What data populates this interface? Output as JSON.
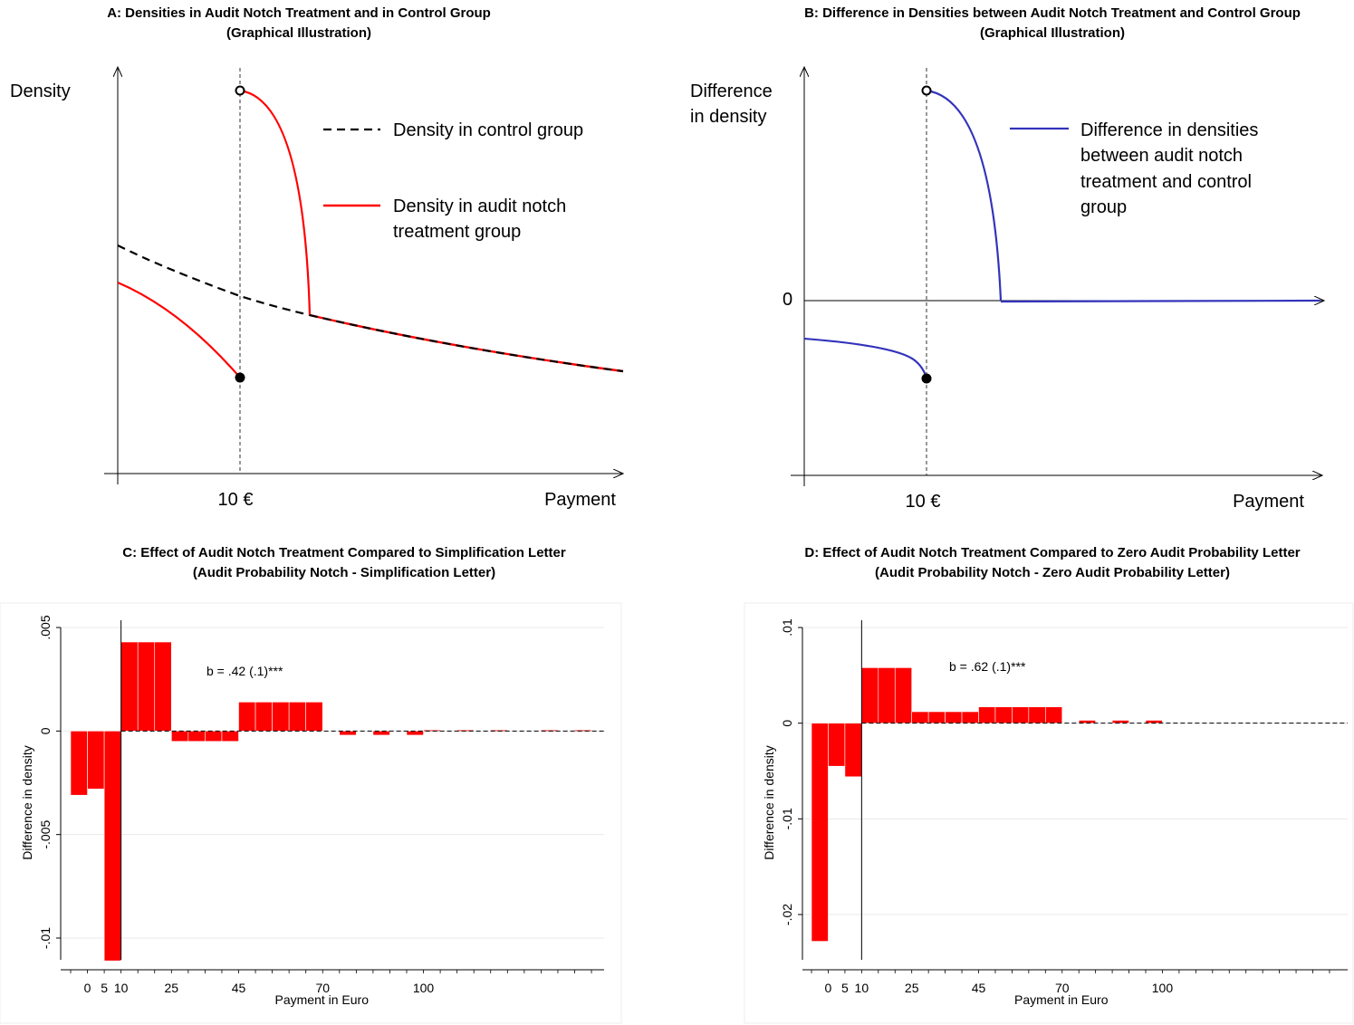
{
  "panels": {
    "a": {
      "title": "A: Densities in Audit Notch Treatment and in Control Group",
      "subtitle": "(Graphical Illustration)",
      "ylabel": "Density",
      "xlabel": "Payment",
      "notch_label": "10 €",
      "legend": {
        "control": "Density in control group",
        "treatment_line1": "Density in audit notch",
        "treatment_line2": "treatment group"
      }
    },
    "b": {
      "title": "B: Difference in Densities between Audit Notch Treatment and Control Group",
      "subtitle": "(Graphical Illustration)",
      "ylabel_line1": "Difference",
      "ylabel_line2": "in density",
      "zero_label": "0",
      "xlabel": "Payment",
      "notch_label": "10 €",
      "legend": {
        "line1": "Difference in densities",
        "line2": "between audit notch",
        "line3": "treatment and control",
        "line4": "group"
      }
    },
    "c": {
      "title": "C: Effect of Audit Notch Treatment Compared to Simplification Letter",
      "subtitle": "(Audit Probability Notch - Simplification Letter)"
    },
    "d": {
      "title": "D: Effect of Audit Notch Treatment Compared to Zero Audit Probability Letter",
      "subtitle": "(Audit Probability Notch - Zero Audit Probability Letter)"
    }
  },
  "colors": {
    "treatment": "#ff0000",
    "difference": "#3333bb",
    "control": "#000000",
    "bar": "#ff0000",
    "grid": "#e8e8e8"
  },
  "chart_data": [
    {
      "id": "c",
      "type": "bar",
      "xlabel": "Payment in Euro",
      "ylabel": "Difference in density",
      "xticks": [
        0,
        5,
        10,
        25,
        45,
        70,
        100
      ],
      "yticks": [
        0.005,
        0,
        -0.005,
        -0.01
      ],
      "ytick_labels": [
        ".005",
        "0",
        "-.005",
        "-.01"
      ],
      "ylim": [
        -0.0111,
        0.0051
      ],
      "xlim": [
        -5,
        150
      ],
      "notch_x": 10,
      "annotation": "b = .42 (.1)***",
      "bars": [
        {
          "x0": -5,
          "x1": 0,
          "value": -0.0031
        },
        {
          "x0": 0,
          "x1": 5,
          "value": -0.0028
        },
        {
          "x0": 5,
          "x1": 10,
          "value": -0.0111
        },
        {
          "x0": 10,
          "x1": 15,
          "value": 0.0043
        },
        {
          "x0": 15,
          "x1": 20,
          "value": 0.0043
        },
        {
          "x0": 20,
          "x1": 25,
          "value": 0.0043
        },
        {
          "x0": 25,
          "x1": 30,
          "value": -0.0005
        },
        {
          "x0": 30,
          "x1": 35,
          "value": -0.0005
        },
        {
          "x0": 35,
          "x1": 40,
          "value": -0.0005
        },
        {
          "x0": 40,
          "x1": 45,
          "value": -0.0005
        },
        {
          "x0": 45,
          "x1": 50,
          "value": 0.0014
        },
        {
          "x0": 50,
          "x1": 55,
          "value": 0.0014
        },
        {
          "x0": 55,
          "x1": 60,
          "value": 0.0014
        },
        {
          "x0": 60,
          "x1": 65,
          "value": 0.0014
        },
        {
          "x0": 65,
          "x1": 70,
          "value": 0.0014
        },
        {
          "x0": 70,
          "x1": 75,
          "value": 0
        },
        {
          "x0": 75,
          "x1": 80,
          "value": -0.0002
        },
        {
          "x0": 80,
          "x1": 85,
          "value": 0
        },
        {
          "x0": 85,
          "x1": 90,
          "value": -0.0002
        },
        {
          "x0": 90,
          "x1": 95,
          "value": 0
        },
        {
          "x0": 95,
          "x1": 100,
          "value": -0.0002
        },
        {
          "x0": 100,
          "x1": 105,
          "value": 5e-05
        },
        {
          "x0": 105,
          "x1": 110,
          "value": 0
        },
        {
          "x0": 110,
          "x1": 115,
          "value": 5e-05
        },
        {
          "x0": 115,
          "x1": 120,
          "value": 0
        },
        {
          "x0": 120,
          "x1": 125,
          "value": 5e-05
        },
        {
          "x0": 125,
          "x1": 130,
          "value": 0
        },
        {
          "x0": 130,
          "x1": 135,
          "value": 0
        },
        {
          "x0": 135,
          "x1": 140,
          "value": 5e-05
        },
        {
          "x0": 140,
          "x1": 145,
          "value": 0
        },
        {
          "x0": 145,
          "x1": 150,
          "value": 5e-05
        }
      ]
    },
    {
      "id": "d",
      "type": "bar",
      "xlabel": "Payment in Euro",
      "ylabel": "Difference in density",
      "xticks": [
        0,
        5,
        10,
        25,
        45,
        70,
        100
      ],
      "yticks": [
        0.01,
        0,
        -0.01,
        -0.02
      ],
      "ytick_labels": [
        ".01",
        "0",
        "-.01",
        "-.02"
      ],
      "ylim": [
        -0.0228,
        0.0102
      ],
      "xlim": [
        -5,
        150
      ],
      "notch_x": 10,
      "annotation": "b = .62 (.1)***",
      "bars": [
        {
          "x0": -5,
          "x1": 0,
          "value": -0.0228
        },
        {
          "x0": 0,
          "x1": 5,
          "value": -0.0045
        },
        {
          "x0": 5,
          "x1": 10,
          "value": -0.0056
        },
        {
          "x0": 10,
          "x1": 15,
          "value": 0.0058
        },
        {
          "x0": 15,
          "x1": 20,
          "value": 0.0058
        },
        {
          "x0": 20,
          "x1": 25,
          "value": 0.0058
        },
        {
          "x0": 25,
          "x1": 30,
          "value": 0.0012
        },
        {
          "x0": 30,
          "x1": 35,
          "value": 0.0012
        },
        {
          "x0": 35,
          "x1": 40,
          "value": 0.0012
        },
        {
          "x0": 40,
          "x1": 45,
          "value": 0.0012
        },
        {
          "x0": 45,
          "x1": 50,
          "value": 0.0017
        },
        {
          "x0": 50,
          "x1": 55,
          "value": 0.0017
        },
        {
          "x0": 55,
          "x1": 60,
          "value": 0.0017
        },
        {
          "x0": 60,
          "x1": 65,
          "value": 0.0017
        },
        {
          "x0": 65,
          "x1": 70,
          "value": 0.0017
        },
        {
          "x0": 70,
          "x1": 75,
          "value": 0
        },
        {
          "x0": 75,
          "x1": 80,
          "value": 0.0003
        },
        {
          "x0": 80,
          "x1": 85,
          "value": 0
        },
        {
          "x0": 85,
          "x1": 90,
          "value": 0.0003
        },
        {
          "x0": 90,
          "x1": 95,
          "value": 0
        },
        {
          "x0": 95,
          "x1": 100,
          "value": 0.0003
        },
        {
          "x0": 100,
          "x1": 105,
          "value": 0
        },
        {
          "x0": 105,
          "x1": 110,
          "value": 0
        },
        {
          "x0": 110,
          "x1": 115,
          "value": 0
        },
        {
          "x0": 115,
          "x1": 120,
          "value": 0
        },
        {
          "x0": 120,
          "x1": 125,
          "value": 0
        },
        {
          "x0": 125,
          "x1": 130,
          "value": 0
        },
        {
          "x0": 130,
          "x1": 135,
          "value": 0
        },
        {
          "x0": 135,
          "x1": 140,
          "value": 0
        },
        {
          "x0": 140,
          "x1": 145,
          "value": 0
        },
        {
          "x0": 145,
          "x1": 150,
          "value": 0
        }
      ]
    }
  ]
}
